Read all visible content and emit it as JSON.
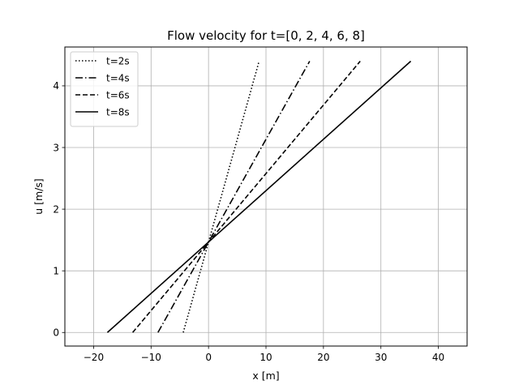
{
  "chart_data": {
    "type": "line",
    "title": "Flow velocity for t=[0, 2, 4, 6, 8]",
    "xlabel": "x [m]",
    "ylabel": "u [m/s]",
    "xlim": [
      -25,
      45
    ],
    "ylim": [
      -0.22,
      4.63
    ],
    "xticks": [
      -20,
      -10,
      0,
      10,
      20,
      30,
      40
    ],
    "yticks": [
      0,
      1,
      2,
      3,
      4
    ],
    "xtick_labels": [
      "−20",
      "−10",
      "0",
      "10",
      "20",
      "30",
      "40"
    ],
    "ytick_labels": [
      "0",
      "1",
      "2",
      "3",
      "4"
    ],
    "grid": true,
    "legend": "top-left",
    "series": [
      {
        "name": "t=2s",
        "style": "dotted",
        "color": "#000000",
        "x": [
          -4.4,
          8.8
        ],
        "y": [
          0,
          4.4
        ]
      },
      {
        "name": "t=4s",
        "style": "dashdot",
        "color": "#000000",
        "x": [
          -8.8,
          17.6
        ],
        "y": [
          0,
          4.4
        ]
      },
      {
        "name": "t=6s",
        "style": "dashed",
        "color": "#000000",
        "x": [
          -13.2,
          26.4
        ],
        "y": [
          0,
          4.4
        ]
      },
      {
        "name": "t=8s",
        "style": "solid",
        "color": "#000000",
        "x": [
          -17.6,
          35.2
        ],
        "y": [
          0,
          4.4
        ]
      }
    ]
  }
}
